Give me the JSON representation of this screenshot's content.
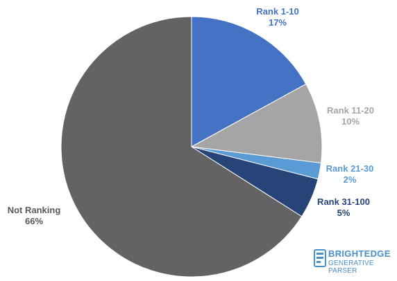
{
  "chart_data": {
    "type": "pie",
    "slices": [
      {
        "label": "Rank 1-10",
        "pct_label": "17%",
        "value": 17,
        "color": "#4472c4"
      },
      {
        "label": "Rank 11-20",
        "pct_label": "10%",
        "value": 10,
        "color": "#a5a5a5"
      },
      {
        "label": "Rank 21-30",
        "pct_label": "2%",
        "value": 2,
        "color": "#5b9bd5"
      },
      {
        "label": "Rank 31-100",
        "pct_label": "5%",
        "value": 5,
        "color": "#264478"
      },
      {
        "label": "Not Ranking",
        "pct_label": "66%",
        "value": 66,
        "color": "#636363"
      }
    ],
    "label_colors": [
      "#4472c4",
      "#a5a5a5",
      "#5b9bd5",
      "#264478",
      "#595959"
    ]
  },
  "logo": {
    "brand": "BRIGHTEDGE",
    "sub": "GENERATIVE PARSER",
    "icon": "brightedge-logo-icon",
    "color": "#4a90c8"
  }
}
